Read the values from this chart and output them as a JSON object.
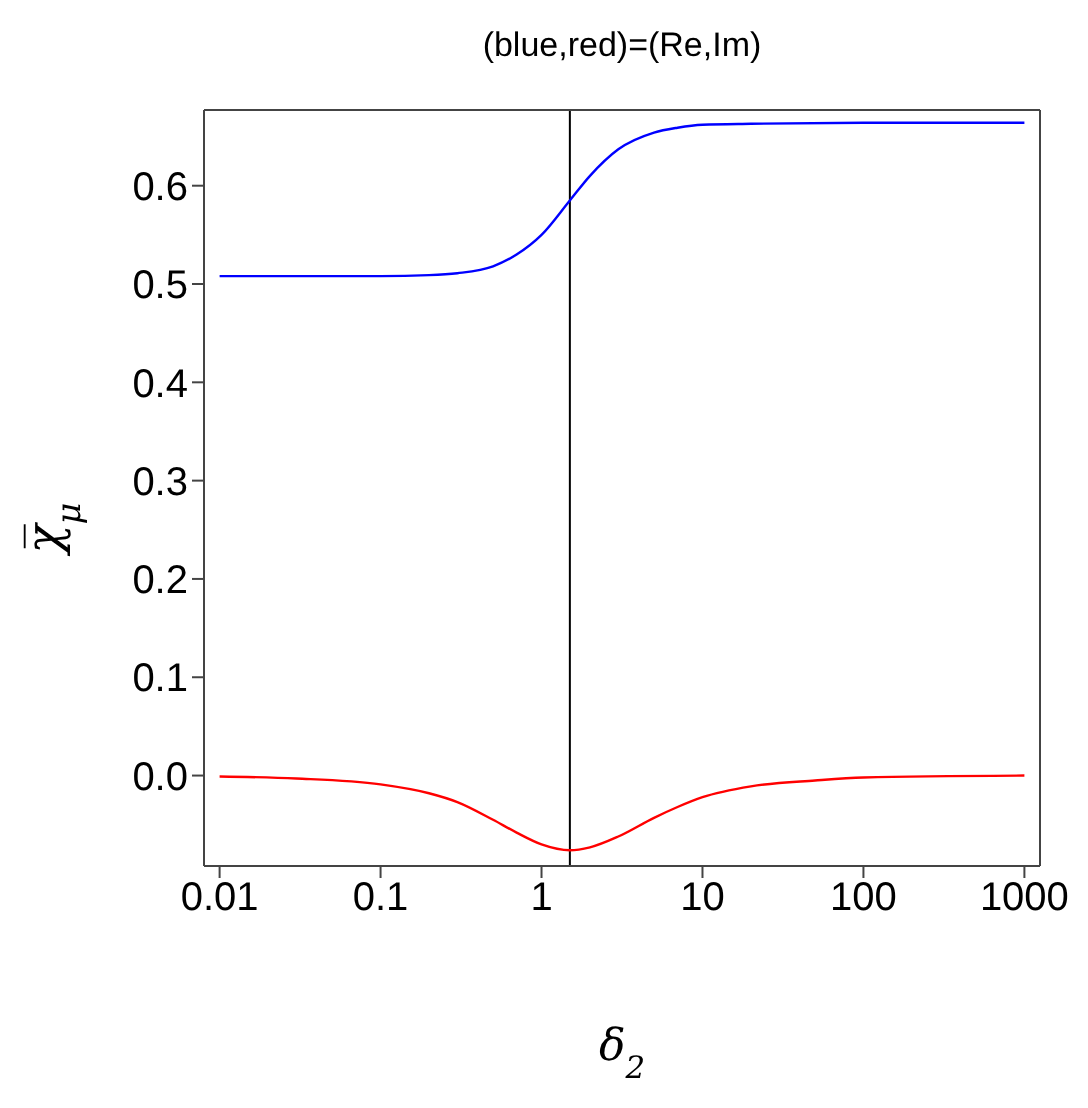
{
  "chart_data": {
    "type": "line",
    "title": "(blue,red)=(Re,Im)",
    "xlabel": "δ$_{2}$",
    "ylabel": "χ̅$_{μ}$",
    "log": "x",
    "xlim": [
      0.008,
      1250
    ],
    "xticks": [
      0.01,
      0.1,
      1,
      10,
      100,
      1000
    ],
    "ylim": [
      -0.092,
      0.677
    ],
    "yticks": [
      {
        "value": 0,
        "label": "0.0"
      },
      0.1,
      0.2,
      0.3,
      0.4,
      0.5,
      0.6
    ],
    "legend": false,
    "marker": "none",
    "line_style": "solid",
    "ref_lines": [
      {
        "axis": "x",
        "value": 1.5,
        "color": "#000000"
      }
    ],
    "series": [
      {
        "color": "#0000ff",
        "x": [
          0.01,
          0.03,
          0.1,
          0.2,
          0.3,
          0.5,
          0.7,
          1,
          1.5,
          2,
          3,
          5,
          7,
          10,
          20,
          100,
          1000
        ],
        "values": [
          0.508,
          0.508,
          0.508,
          0.509,
          0.511,
          0.518,
          0.53,
          0.55,
          0.585,
          0.61,
          0.637,
          0.654,
          0.659,
          0.662,
          0.663,
          0.664,
          0.664
        ]
      },
      {
        "color": "#ff0000",
        "x": [
          0.01,
          0.03,
          0.1,
          0.2,
          0.3,
          0.5,
          0.7,
          1,
          1.5,
          2,
          3,
          5,
          7,
          10,
          20,
          50,
          100,
          1000
        ],
        "values": [
          -0.001,
          -0.003,
          -0.009,
          -0.018,
          -0.027,
          -0.045,
          -0.058,
          -0.07,
          -0.076,
          -0.073,
          -0.062,
          -0.043,
          -0.032,
          -0.022,
          -0.011,
          -0.005,
          -0.002,
          0
        ]
      }
    ]
  }
}
